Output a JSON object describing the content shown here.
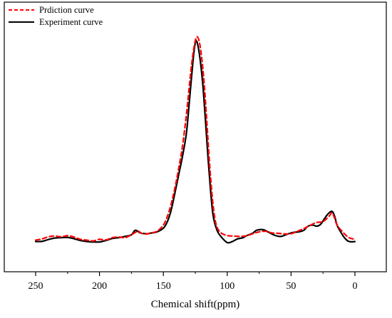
{
  "chart_data": {
    "type": "line",
    "xlabel": "Chemical shift(ppm)",
    "ylabel": "",
    "xlim": [
      275,
      -15
    ],
    "x_reversed": true,
    "y_ticks_shown": false,
    "ylim": [
      -0.05,
      1.12
    ],
    "x_ticks": [
      250,
      200,
      150,
      100,
      50,
      0
    ],
    "x_tick_labels": [
      "250",
      "200",
      "150",
      "100",
      "50",
      "0"
    ],
    "grid": false,
    "legend": "top-left",
    "series": [
      {
        "name": "Prdiction curve",
        "style": "dashed",
        "color": "#ff0000",
        "points": [
          [
            250,
            0.012
          ],
          [
            245,
            0.018
          ],
          [
            240,
            0.028
          ],
          [
            235,
            0.032
          ],
          [
            230,
            0.028
          ],
          [
            225,
            0.034
          ],
          [
            220,
            0.027
          ],
          [
            215,
            0.016
          ],
          [
            210,
            0.012
          ],
          [
            205,
            0.008
          ],
          [
            200,
            0.016
          ],
          [
            195,
            0.013
          ],
          [
            190,
            0.024
          ],
          [
            185,
            0.027
          ],
          [
            180,
            0.024
          ],
          [
            175,
            0.038
          ],
          [
            170,
            0.055
          ],
          [
            167,
            0.045
          ],
          [
            163,
            0.042
          ],
          [
            160,
            0.047
          ],
          [
            155,
            0.055
          ],
          [
            150,
            0.085
          ],
          [
            147,
            0.125
          ],
          [
            144,
            0.185
          ],
          [
            141,
            0.265
          ],
          [
            138,
            0.36
          ],
          [
            135,
            0.47
          ],
          [
            132,
            0.62
          ],
          [
            130,
            0.74
          ],
          [
            128,
            0.86
          ],
          [
            126,
            0.95
          ],
          [
            124,
            1.0
          ],
          [
            122,
            0.98
          ],
          [
            120,
            0.9
          ],
          [
            118,
            0.77
          ],
          [
            116,
            0.59
          ],
          [
            114,
            0.4
          ],
          [
            112,
            0.24
          ],
          [
            110,
            0.13
          ],
          [
            108,
            0.075
          ],
          [
            105,
            0.048
          ],
          [
            100,
            0.034
          ],
          [
            95,
            0.032
          ],
          [
            90,
            0.03
          ],
          [
            85,
            0.033
          ],
          [
            80,
            0.043
          ],
          [
            75,
            0.052
          ],
          [
            70,
            0.055
          ],
          [
            65,
            0.047
          ],
          [
            60,
            0.045
          ],
          [
            55,
            0.042
          ],
          [
            50,
            0.043
          ],
          [
            45,
            0.055
          ],
          [
            40,
            0.068
          ],
          [
            35,
            0.084
          ],
          [
            30,
            0.098
          ],
          [
            25,
            0.102
          ],
          [
            20,
            0.13
          ],
          [
            18,
            0.145
          ],
          [
            16,
            0.12
          ],
          [
            14,
            0.085
          ],
          [
            10,
            0.055
          ],
          [
            7,
            0.035
          ],
          [
            4,
            0.022
          ],
          [
            0,
            0.016
          ]
        ]
      },
      {
        "name": "Experiment curve",
        "style": "solid",
        "color": "#000000",
        "points": [
          [
            250,
            0.005
          ],
          [
            245,
            0.006
          ],
          [
            240,
            0.015
          ],
          [
            235,
            0.022
          ],
          [
            230,
            0.024
          ],
          [
            225,
            0.025
          ],
          [
            220,
            0.019
          ],
          [
            215,
            0.01
          ],
          [
            210,
            0.005
          ],
          [
            205,
            0.003
          ],
          [
            200,
            0.003
          ],
          [
            195,
            0.01
          ],
          [
            190,
            0.02
          ],
          [
            185,
            0.024
          ],
          [
            180,
            0.03
          ],
          [
            175,
            0.038
          ],
          [
            172,
            0.06
          ],
          [
            168,
            0.047
          ],
          [
            163,
            0.043
          ],
          [
            160,
            0.046
          ],
          [
            155,
            0.052
          ],
          [
            150,
            0.07
          ],
          [
            147,
            0.1
          ],
          [
            144,
            0.155
          ],
          [
            141,
            0.24
          ],
          [
            138,
            0.33
          ],
          [
            135,
            0.42
          ],
          [
            132,
            0.53
          ],
          [
            130,
            0.66
          ],
          [
            128,
            0.8
          ],
          [
            126,
            0.93
          ],
          [
            124.5,
            0.98
          ],
          [
            123,
            0.96
          ],
          [
            121,
            0.88
          ],
          [
            119,
            0.76
          ],
          [
            117,
            0.59
          ],
          [
            115,
            0.41
          ],
          [
            113,
            0.25
          ],
          [
            111,
            0.13
          ],
          [
            108,
            0.06
          ],
          [
            105,
            0.03
          ],
          [
            100,
            0.0
          ],
          [
            96,
            0.005
          ],
          [
            92,
            0.018
          ],
          [
            88,
            0.023
          ],
          [
            85,
            0.033
          ],
          [
            80,
            0.046
          ],
          [
            77,
            0.06
          ],
          [
            72,
            0.063
          ],
          [
            68,
            0.052
          ],
          [
            63,
            0.036
          ],
          [
            58,
            0.03
          ],
          [
            53,
            0.041
          ],
          [
            48,
            0.05
          ],
          [
            44,
            0.052
          ],
          [
            40,
            0.06
          ],
          [
            37,
            0.079
          ],
          [
            33,
            0.085
          ],
          [
            30,
            0.08
          ],
          [
            27,
            0.088
          ],
          [
            24,
            0.115
          ],
          [
            21,
            0.14
          ],
          [
            18,
            0.152
          ],
          [
            16,
            0.13
          ],
          [
            14,
            0.085
          ],
          [
            11,
            0.05
          ],
          [
            8,
            0.022
          ],
          [
            5,
            0.006
          ],
          [
            2,
            0.004
          ],
          [
            0,
            0.005
          ]
        ]
      }
    ]
  }
}
